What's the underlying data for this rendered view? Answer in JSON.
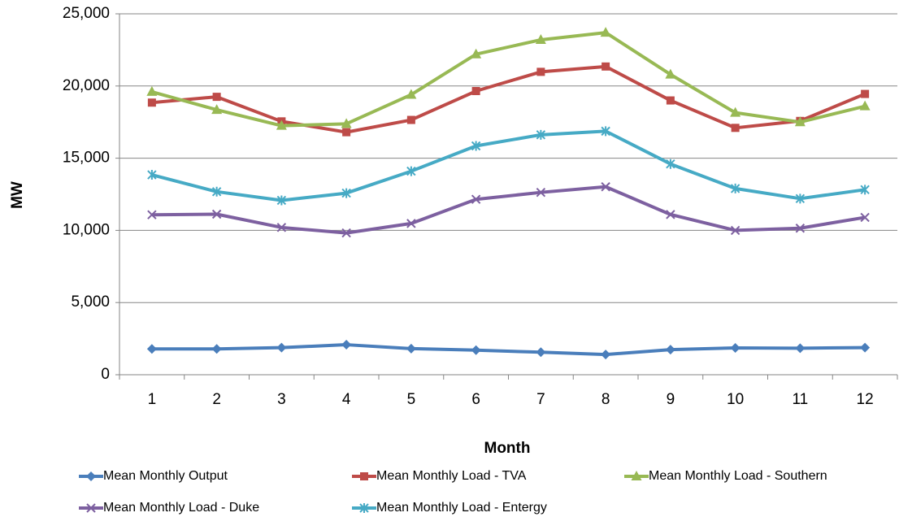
{
  "chart_data": {
    "type": "line",
    "x_label": "Month",
    "y_label": "MW",
    "categories": [
      "1",
      "2",
      "3",
      "4",
      "5",
      "6",
      "7",
      "8",
      "9",
      "10",
      "11",
      "12"
    ],
    "ylim": [
      0,
      25000
    ],
    "yticks": [
      0,
      {
        "value": 5000,
        "label": "5,000"
      },
      {
        "value": 10000,
        "label": "10,000"
      },
      {
        "value": 15000,
        "label": "15,000"
      },
      {
        "value": 20000,
        "label": "20,000"
      },
      {
        "value": 25000,
        "label": "25,000"
      }
    ],
    "grid": true,
    "legend": "bottom",
    "series": [
      {
        "name": "Mean Monthly Output",
        "color": "#4a7ebb",
        "marker": "diamond",
        "values": [
          1785,
          1790,
          1880,
          2080,
          1810,
          1700,
          1560,
          1400,
          1740,
          1860,
          1840,
          1880
        ]
      },
      {
        "name": "Mean Monthly Load - TVA",
        "color": "#be4b48",
        "marker": "square",
        "values": [
          18850,
          19250,
          17550,
          16800,
          17650,
          19650,
          20980,
          21350,
          19000,
          17100,
          17580,
          19450
        ]
      },
      {
        "name": "Mean Monthly Load - Southern",
        "color": "#98b954",
        "marker": "triangle",
        "values": [
          19600,
          18350,
          17250,
          17380,
          19400,
          22200,
          23200,
          23700,
          20800,
          18150,
          17500,
          18600
        ]
      },
      {
        "name": "Mean Monthly Load - Duke",
        "color": "#7d60a0",
        "marker": "x",
        "values": [
          11080,
          11120,
          10200,
          9820,
          10480,
          12150,
          12630,
          13020,
          11100,
          10000,
          10150,
          10900
        ]
      },
      {
        "name": "Mean Monthly Load - Entergy",
        "color": "#46aac5",
        "marker": "asterisk",
        "values": [
          13850,
          12680,
          12080,
          12580,
          14100,
          15850,
          16620,
          16870,
          14600,
          12900,
          12200,
          12820
        ]
      }
    ]
  }
}
